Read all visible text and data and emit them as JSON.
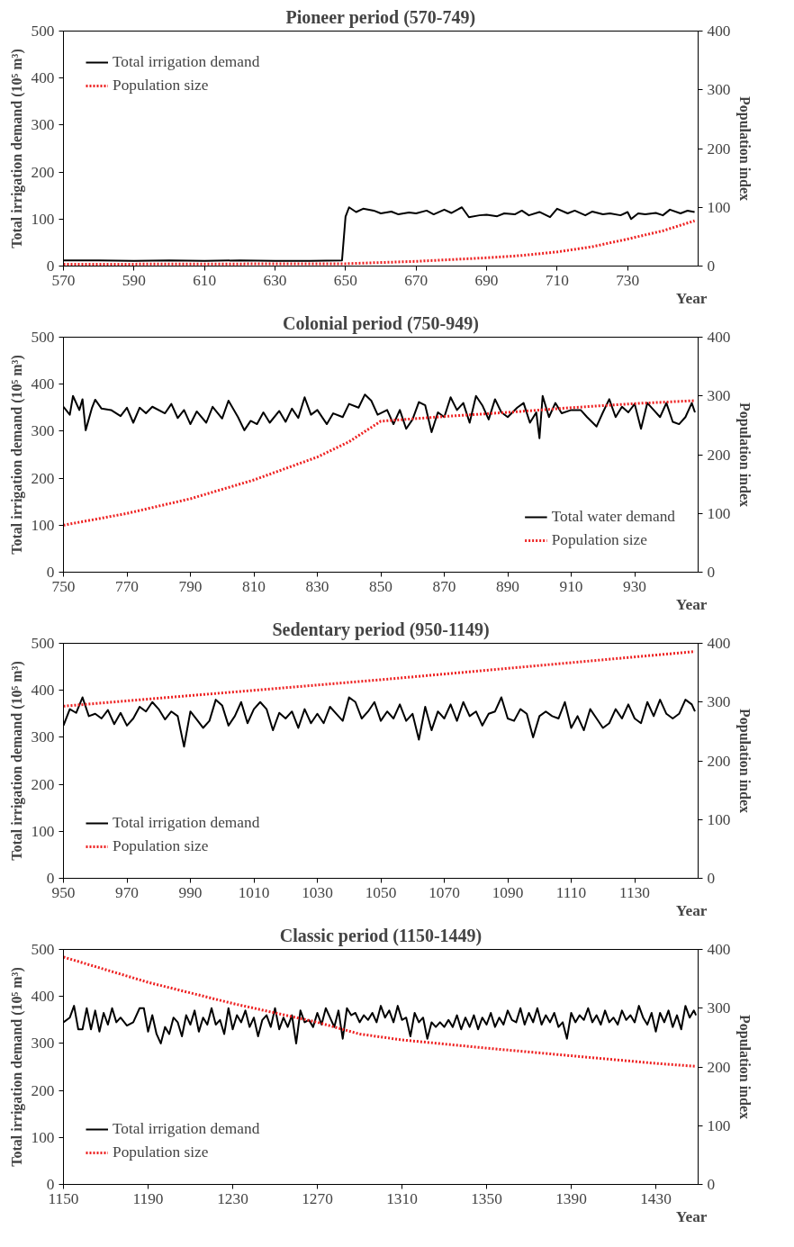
{
  "chart_data": [
    {
      "type": "line",
      "title": "Pioneer period (570-749)",
      "xlabel": "Year",
      "ylabel": "Total irrigation demand (10⁵ m³)",
      "y2label": "Population index",
      "xlim": [
        570,
        750
      ],
      "xticks": [
        570,
        590,
        610,
        630,
        650,
        670,
        690,
        710,
        730
      ],
      "ylim": [
        0,
        500
      ],
      "yticks": [
        0,
        100,
        200,
        300,
        400,
        500
      ],
      "y2lim": [
        0,
        400
      ],
      "y2ticks": [
        0,
        100,
        200,
        300,
        400
      ],
      "legend": "top left",
      "series": [
        {
          "name": "Total irrigation demand",
          "color": "#000000",
          "line_style": "solid",
          "x": [
            570,
            580,
            590,
            600,
            610,
            620,
            630,
            640,
            649,
            650,
            651,
            653,
            655,
            658,
            660,
            663,
            665,
            668,
            670,
            673,
            675,
            678,
            680,
            683,
            685,
            688,
            690,
            693,
            695,
            698,
            700,
            702,
            705,
            708,
            710,
            713,
            715,
            718,
            720,
            723,
            725,
            728,
            730,
            731,
            733,
            735,
            738,
            740,
            742,
            745,
            747,
            749
          ],
          "values": [
            12,
            12,
            11,
            12,
            11,
            12,
            11,
            11,
            12,
            105,
            125,
            115,
            122,
            118,
            112,
            116,
            110,
            114,
            112,
            118,
            110,
            120,
            113,
            125,
            104,
            108,
            109,
            106,
            112,
            110,
            118,
            108,
            115,
            104,
            122,
            112,
            118,
            108,
            116,
            110,
            112,
            108,
            115,
            100,
            112,
            110,
            113,
            108,
            120,
            112,
            118,
            115
          ]
        },
        {
          "name": "Population size",
          "color": "#ee2222",
          "line_style": "dotted",
          "axis": "y2",
          "x": [
            570,
            650,
            670,
            690,
            700,
            710,
            720,
            730,
            740,
            749
          ],
          "values": [
            3,
            4,
            8,
            14,
            18,
            24,
            33,
            46,
            60,
            77
          ]
        }
      ]
    },
    {
      "type": "line",
      "title": "Colonial period (750-949)",
      "xlabel": "Year",
      "ylabel": "Total irrigation demand (10⁵ m³)",
      "y2label": "Population index",
      "xlim": [
        750,
        950
      ],
      "xticks": [
        750,
        770,
        790,
        810,
        830,
        850,
        870,
        890,
        910,
        930
      ],
      "ylim": [
        0,
        500
      ],
      "yticks": [
        0,
        100,
        200,
        300,
        400,
        500
      ],
      "y2lim": [
        0,
        400
      ],
      "y2ticks": [
        0,
        100,
        200,
        300,
        400
      ],
      "legend": "bottom right",
      "series": [
        {
          "name": "Total water demand",
          "color": "#000000",
          "line_style": "solid",
          "x": [
            750,
            752,
            753,
            755,
            756,
            757,
            759,
            760,
            762,
            765,
            768,
            770,
            772,
            774,
            776,
            778,
            782,
            784,
            786,
            788,
            790,
            792,
            795,
            797,
            800,
            802,
            805,
            807,
            809,
            811,
            813,
            815,
            818,
            820,
            822,
            824,
            826,
            828,
            830,
            833,
            835,
            838,
            840,
            843,
            845,
            847,
            849,
            852,
            854,
            856,
            858,
            860,
            862,
            864,
            866,
            868,
            870,
            872,
            874,
            876,
            878,
            880,
            882,
            884,
            886,
            888,
            890,
            893,
            895,
            897,
            899,
            900,
            901,
            903,
            905,
            907,
            910,
            913,
            915,
            918,
            920,
            922,
            924,
            926,
            928,
            930,
            932,
            934,
            936,
            938,
            940,
            942,
            944,
            946,
            948,
            949
          ],
          "values": [
            352,
            335,
            375,
            345,
            368,
            302,
            350,
            367,
            348,
            345,
            332,
            350,
            318,
            350,
            338,
            352,
            338,
            358,
            328,
            345,
            315,
            342,
            318,
            352,
            327,
            365,
            330,
            302,
            322,
            315,
            340,
            318,
            343,
            320,
            348,
            328,
            372,
            335,
            345,
            315,
            338,
            330,
            358,
            350,
            378,
            365,
            335,
            345,
            315,
            345,
            305,
            325,
            362,
            355,
            298,
            340,
            330,
            372,
            345,
            360,
            318,
            375,
            355,
            325,
            368,
            340,
            330,
            350,
            360,
            318,
            340,
            285,
            375,
            330,
            360,
            338,
            345,
            345,
            330,
            310,
            340,
            368,
            330,
            352,
            340,
            358,
            305,
            360,
            345,
            330,
            360,
            320,
            315,
            330,
            360,
            340
          ]
        },
        {
          "name": "Population size",
          "color": "#ee2222",
          "line_style": "dotted",
          "axis": "y2",
          "x": [
            750,
            770,
            790,
            810,
            830,
            840,
            850,
            870,
            890,
            910,
            930,
            949
          ],
          "values": [
            80,
            100,
            125,
            157,
            196,
            222,
            257,
            265,
            272,
            280,
            287,
            292
          ]
        }
      ]
    },
    {
      "type": "line",
      "title": "Sedentary period (950-1149)",
      "xlabel": "Year",
      "ylabel": "Total irrigation demand (10⁵ m³)",
      "y2label": "Population index",
      "xlim": [
        950,
        1150
      ],
      "xticks": [
        950,
        970,
        990,
        1010,
        1030,
        1050,
        1070,
        1090,
        1110,
        1130
      ],
      "ylim": [
        0,
        500
      ],
      "yticks": [
        0,
        100,
        200,
        300,
        400,
        500
      ],
      "y2lim": [
        0,
        400
      ],
      "y2ticks": [
        0,
        100,
        200,
        300,
        400
      ],
      "legend": "bottom left",
      "series": [
        {
          "name": "Total irrigation demand",
          "color": "#000000",
          "line_style": "solid",
          "x": [
            950,
            952,
            954,
            956,
            958,
            960,
            962,
            964,
            966,
            968,
            970,
            972,
            974,
            976,
            978,
            980,
            982,
            984,
            986,
            988,
            990,
            992,
            994,
            996,
            998,
            1000,
            1002,
            1004,
            1006,
            1008,
            1010,
            1012,
            1014,
            1016,
            1018,
            1020,
            1022,
            1024,
            1026,
            1028,
            1030,
            1032,
            1034,
            1036,
            1038,
            1040,
            1042,
            1044,
            1046,
            1048,
            1050,
            1052,
            1054,
            1056,
            1058,
            1060,
            1062,
            1064,
            1066,
            1068,
            1070,
            1072,
            1074,
            1076,
            1078,
            1080,
            1082,
            1084,
            1086,
            1088,
            1090,
            1092,
            1094,
            1096,
            1098,
            1100,
            1102,
            1104,
            1106,
            1108,
            1110,
            1112,
            1114,
            1116,
            1118,
            1120,
            1122,
            1124,
            1126,
            1128,
            1130,
            1132,
            1134,
            1136,
            1138,
            1140,
            1142,
            1144,
            1146,
            1148,
            1149
          ],
          "values": [
            325,
            360,
            352,
            385,
            345,
            350,
            340,
            358,
            328,
            352,
            325,
            340,
            365,
            355,
            375,
            360,
            338,
            355,
            345,
            280,
            355,
            338,
            320,
            335,
            380,
            368,
            325,
            345,
            375,
            330,
            360,
            375,
            360,
            315,
            352,
            340,
            355,
            320,
            360,
            330,
            350,
            330,
            365,
            350,
            335,
            385,
            375,
            340,
            355,
            375,
            335,
            355,
            340,
            370,
            335,
            350,
            295,
            365,
            315,
            355,
            340,
            370,
            335,
            375,
            345,
            355,
            325,
            350,
            355,
            385,
            340,
            335,
            360,
            350,
            300,
            345,
            355,
            345,
            340,
            375,
            320,
            345,
            315,
            360,
            340,
            320,
            330,
            360,
            340,
            370,
            340,
            330,
            375,
            345,
            380,
            350,
            340,
            350,
            380,
            370,
            355
          ]
        },
        {
          "name": "Population size",
          "color": "#ee2222",
          "line_style": "dotted",
          "axis": "y2",
          "x": [
            950,
            1050,
            1149
          ],
          "values": [
            293,
            338,
            386
          ]
        }
      ]
    },
    {
      "type": "line",
      "title": "Classic period (1150-1449)",
      "xlabel": "Year",
      "ylabel": "Total irrigation demand (10⁵ m³)",
      "y2label": "Population index",
      "xlim": [
        1150,
        1450
      ],
      "xticks": [
        1150,
        1190,
        1230,
        1270,
        1310,
        1350,
        1390,
        1430
      ],
      "ylim": [
        0,
        500
      ],
      "yticks": [
        0,
        100,
        200,
        300,
        400,
        500
      ],
      "y2lim": [
        0,
        400
      ],
      "y2ticks": [
        0,
        100,
        200,
        300,
        400
      ],
      "legend": "bottom left",
      "series": [
        {
          "name": "Total irrigation demand",
          "color": "#000000",
          "line_style": "solid",
          "x": [
            1150,
            1153,
            1155,
            1157,
            1159,
            1161,
            1163,
            1165,
            1167,
            1169,
            1171,
            1173,
            1175,
            1177,
            1180,
            1183,
            1186,
            1188,
            1190,
            1192,
            1194,
            1196,
            1198,
            1200,
            1202,
            1204,
            1206,
            1208,
            1210,
            1212,
            1214,
            1216,
            1218,
            1220,
            1222,
            1224,
            1226,
            1228,
            1230,
            1232,
            1234,
            1236,
            1238,
            1240,
            1242,
            1244,
            1246,
            1248,
            1250,
            1252,
            1254,
            1256,
            1258,
            1260,
            1262,
            1264,
            1266,
            1268,
            1270,
            1272,
            1274,
            1276,
            1278,
            1280,
            1282,
            1284,
            1286,
            1288,
            1290,
            1292,
            1294,
            1296,
            1298,
            1300,
            1302,
            1304,
            1306,
            1308,
            1310,
            1312,
            1314,
            1316,
            1318,
            1320,
            1322,
            1324,
            1326,
            1328,
            1330,
            1332,
            1334,
            1336,
            1338,
            1340,
            1342,
            1344,
            1346,
            1348,
            1350,
            1352,
            1354,
            1356,
            1358,
            1360,
            1362,
            1364,
            1366,
            1368,
            1370,
            1372,
            1374,
            1376,
            1378,
            1380,
            1382,
            1384,
            1386,
            1388,
            1390,
            1392,
            1394,
            1396,
            1398,
            1400,
            1402,
            1404,
            1406,
            1408,
            1410,
            1412,
            1414,
            1416,
            1418,
            1420,
            1422,
            1424,
            1426,
            1428,
            1430,
            1432,
            1434,
            1436,
            1438,
            1440,
            1442,
            1444,
            1446,
            1448,
            1449
          ],
          "values": [
            345,
            355,
            380,
            330,
            330,
            375,
            330,
            370,
            325,
            365,
            340,
            375,
            345,
            355,
            338,
            345,
            375,
            375,
            325,
            360,
            320,
            300,
            335,
            320,
            355,
            345,
            315,
            360,
            340,
            370,
            325,
            355,
            340,
            375,
            340,
            350,
            320,
            375,
            330,
            360,
            345,
            370,
            335,
            355,
            315,
            350,
            360,
            335,
            375,
            330,
            355,
            335,
            360,
            300,
            370,
            345,
            350,
            335,
            365,
            340,
            375,
            355,
            335,
            370,
            310,
            375,
            360,
            365,
            345,
            360,
            350,
            365,
            345,
            380,
            355,
            370,
            345,
            380,
            350,
            355,
            315,
            365,
            345,
            355,
            310,
            345,
            335,
            345,
            335,
            350,
            335,
            360,
            330,
            355,
            335,
            360,
            330,
            355,
            340,
            365,
            335,
            355,
            340,
            370,
            350,
            345,
            375,
            340,
            365,
            345,
            375,
            340,
            360,
            345,
            365,
            335,
            345,
            310,
            365,
            345,
            360,
            350,
            375,
            345,
            360,
            340,
            370,
            345,
            355,
            340,
            370,
            350,
            360,
            345,
            380,
            355,
            340,
            365,
            325,
            365,
            345,
            370,
            335,
            360,
            330,
            380,
            355,
            370,
            360
          ]
        },
        {
          "name": "Population size",
          "color": "#ee2222",
          "line_style": "dotted",
          "axis": "y2",
          "x": [
            1150,
            1190,
            1230,
            1270,
            1290,
            1310,
            1350,
            1390,
            1430,
            1449
          ],
          "values": [
            387,
            344,
            308,
            276,
            256,
            246,
            232,
            219,
            206,
            201
          ]
        }
      ]
    }
  ]
}
